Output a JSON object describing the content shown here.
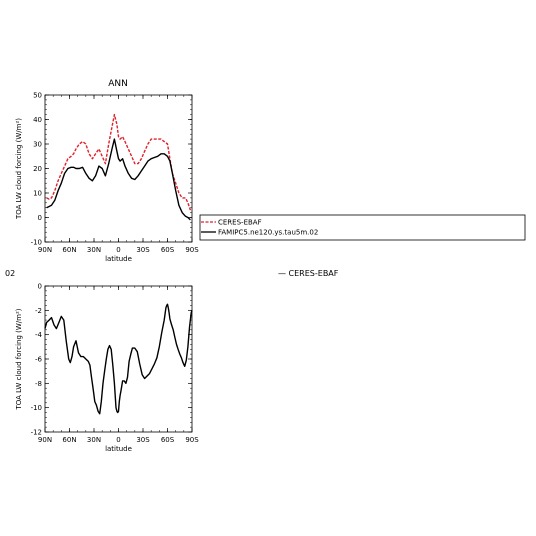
{
  "chart_data": [
    {
      "type": "line",
      "title": "ANN",
      "xlabel": "latitude",
      "ylabel": "TOA LW cloud forcing (W/m²)",
      "x_ticks": [
        "90N",
        "60N",
        "30N",
        "0",
        "30S",
        "60S",
        "90S"
      ],
      "xlim": [
        90,
        -90
      ],
      "ylim": [
        -10,
        50
      ],
      "y_ticks": [
        -10,
        0,
        10,
        20,
        30,
        40,
        50
      ],
      "legend": {
        "placement": "right",
        "entries": [
          "CERES-EBAF",
          "FAMIPC5.ne120.ys.tau5m.02"
        ]
      },
      "series": [
        {
          "name": "CERES-EBAF",
          "color": "#e0202a",
          "dash": true,
          "x": [
            88,
            85,
            82,
            78,
            74,
            70,
            66,
            62,
            58,
            55,
            52,
            48,
            44,
            40,
            36,
            32,
            28,
            24,
            20,
            16,
            12,
            8,
            5,
            2,
            0,
            -2,
            -5,
            -8,
            -12,
            -16,
            -20,
            -24,
            -28,
            -32,
            -36,
            -40,
            -44,
            -48,
            -52,
            -56,
            -60,
            -63,
            -66,
            -70,
            -74,
            -78,
            -82,
            -85,
            -88
          ],
          "y": [
            8,
            7.5,
            8,
            11,
            15,
            18,
            21,
            24,
            25,
            26,
            28,
            30,
            31,
            30,
            26,
            24,
            26,
            28,
            25,
            22,
            30,
            37,
            42,
            38,
            33,
            32,
            33,
            31,
            28,
            25,
            22,
            22,
            24,
            27,
            30,
            32,
            32,
            32,
            32,
            31,
            30,
            24,
            18,
            14,
            10,
            8,
            8,
            6,
            3
          ]
        },
        {
          "name": "FAMIPC5.ne120.ys.tau5m.02",
          "color": "#000000",
          "dash": false,
          "x": [
            88,
            85,
            82,
            78,
            74,
            70,
            66,
            62,
            58,
            55,
            52,
            48,
            44,
            40,
            36,
            32,
            28,
            24,
            20,
            16,
            12,
            8,
            5,
            2,
            0,
            -2,
            -5,
            -8,
            -12,
            -16,
            -20,
            -24,
            -28,
            -32,
            -36,
            -40,
            -44,
            -48,
            -52,
            -56,
            -60,
            -63,
            -66,
            -70,
            -74,
            -78,
            -82,
            -85,
            -88
          ],
          "y": [
            4,
            4.5,
            5,
            7,
            11,
            14,
            18,
            20,
            20.5,
            20.5,
            20,
            20,
            20.5,
            18,
            16,
            15,
            17,
            21,
            20,
            17,
            22,
            28,
            32,
            27,
            24,
            23,
            24,
            21,
            18,
            16,
            15.5,
            17,
            19,
            21,
            23,
            24,
            24.5,
            25,
            26,
            26,
            25,
            23,
            18,
            11,
            5,
            2,
            0.5,
            0,
            -1
          ]
        }
      ]
    },
    {
      "type": "line",
      "title": "",
      "xlabel": "latitude",
      "ylabel": "TOA LW cloud forcing (W/m²)",
      "x_ticks": [
        "90N",
        "60N",
        "30N",
        "0",
        "30S",
        "60S",
        "90S"
      ],
      "xlim": [
        90,
        -90
      ],
      "ylim": [
        -12,
        0
      ],
      "y_ticks": [
        -12,
        -10,
        -8,
        -6,
        -4,
        -2,
        0
      ],
      "series": [
        {
          "name": "",
          "color": "#000000",
          "dash": false,
          "x": [
            90,
            88,
            85,
            82,
            79,
            76,
            73,
            70,
            67,
            64,
            61,
            59,
            57,
            55,
            52,
            49,
            46,
            43,
            40,
            37,
            35,
            33,
            31,
            29,
            27,
            25,
            23,
            21,
            19,
            17,
            15,
            13,
            11,
            9,
            7,
            5,
            4,
            3,
            2,
            1,
            0,
            -1,
            -2,
            -3,
            -4,
            -5,
            -7,
            -9,
            -11,
            -13,
            -15,
            -17,
            -20,
            -23,
            -26,
            -29,
            -32,
            -35,
            -38,
            -41,
            -44,
            -47,
            -50,
            -53,
            -56,
            -58,
            -59,
            -60,
            -61,
            -62,
            -63,
            -65,
            -67,
            -69,
            -71,
            -73,
            -75,
            -77,
            -79,
            -81,
            -83,
            -85,
            -87,
            -89,
            -90
          ],
          "y": [
            -3.5,
            -3,
            -2.8,
            -2.6,
            -3.2,
            -3.5,
            -3,
            -2.5,
            -2.8,
            -4.5,
            -6,
            -6.3,
            -5.8,
            -5,
            -4.5,
            -5.5,
            -5.8,
            -5.8,
            -6,
            -6.2,
            -6.5,
            -7.5,
            -8.5,
            -9.5,
            -9.8,
            -10.3,
            -10.5,
            -9.5,
            -8,
            -7,
            -6,
            -5.2,
            -4.9,
            -5.2,
            -6.5,
            -8,
            -9,
            -10,
            -10.3,
            -10.4,
            -10.3,
            -9.5,
            -9,
            -8.6,
            -8.2,
            -7.8,
            -7.8,
            -8,
            -7.5,
            -6.2,
            -5.6,
            -5.1,
            -5.1,
            -5.4,
            -6.4,
            -7.3,
            -7.6,
            -7.4,
            -7.2,
            -6.8,
            -6.4,
            -5.9,
            -5,
            -3.8,
            -2.8,
            -1.8,
            -1.6,
            -1.5,
            -1.8,
            -2.2,
            -2.7,
            -3.2,
            -3.6,
            -4.2,
            -4.8,
            -5.2,
            -5.6,
            -5.9,
            -6.3,
            -6.6,
            -6.1,
            -5,
            -3.4,
            -2.2,
            -2
          ]
        }
      ]
    }
  ],
  "fragments": {
    "left_edge": "02",
    "right_label": "— CERES-EBAF"
  }
}
